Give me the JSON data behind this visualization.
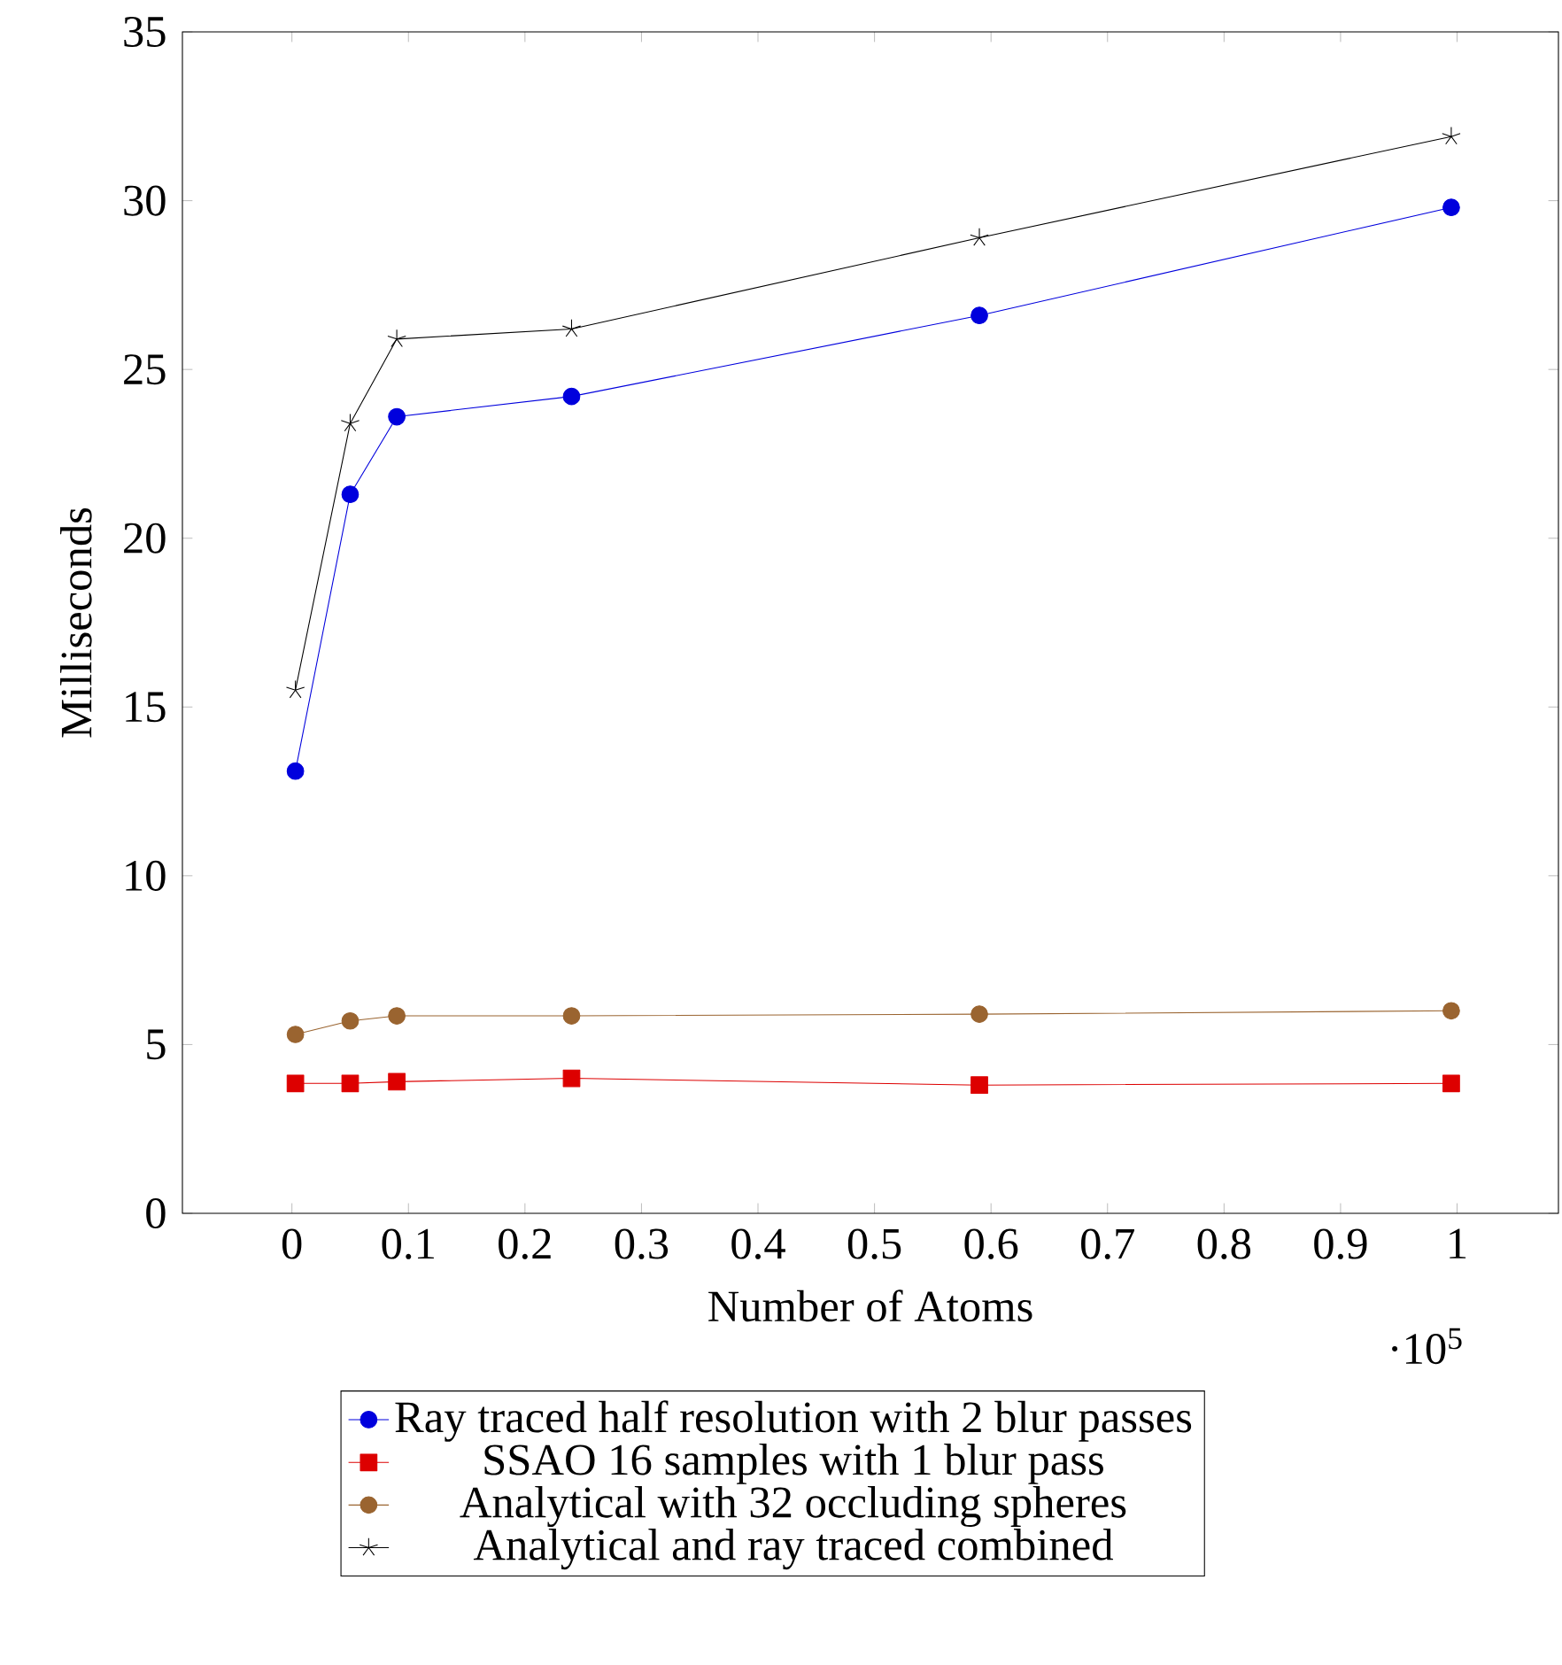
{
  "chart_data": {
    "type": "line",
    "xlabel": "Number of Atoms",
    "ylabel": "Milliseconds",
    "annotations": [
      "·10$^{5}$"
    ],
    "xlim": [
      -0.094,
      1.087
    ],
    "ylim": [
      0,
      35
    ],
    "xticks": [
      0,
      0.1,
      0.2,
      0.3,
      0.4,
      0.5,
      0.6,
      0.7,
      0.8,
      0.9,
      1
    ],
    "yticks": [
      0,
      5,
      10,
      15,
      20,
      25,
      30,
      35
    ],
    "legend": "bottom",
    "grid": false,
    "series": [
      {
        "name": "Ray traced half resolution with 2 blur passes",
        "color": "#0000dd",
        "marker": "circle",
        "x": [
          0.003,
          0.05,
          0.09,
          0.24,
          0.59,
          0.995
        ],
        "values": [
          13.1,
          21.3,
          23.6,
          24.2,
          26.6,
          29.8
        ]
      },
      {
        "name": "SSAO 16 samples with 1 blur pass",
        "color": "#dd0000",
        "marker": "square",
        "x": [
          0.003,
          0.05,
          0.09,
          0.24,
          0.59,
          0.995
        ],
        "values": [
          3.85,
          3.85,
          3.9,
          4.0,
          3.8,
          3.85
        ]
      },
      {
        "name": "Analytical with 32 occluding spheres",
        "color": "#9a6430",
        "marker": "circle",
        "x": [
          0.003,
          0.05,
          0.09,
          0.24,
          0.59,
          0.995
        ],
        "values": [
          5.3,
          5.7,
          5.85,
          5.85,
          5.9,
          6.0
        ]
      },
      {
        "name": "Analytical and ray traced combined",
        "color": "#000000",
        "marker": "cross",
        "x": [
          0.003,
          0.05,
          0.09,
          0.24,
          0.59,
          0.995
        ],
        "values": [
          15.5,
          23.4,
          25.9,
          26.2,
          28.9,
          31.9
        ]
      }
    ]
  }
}
